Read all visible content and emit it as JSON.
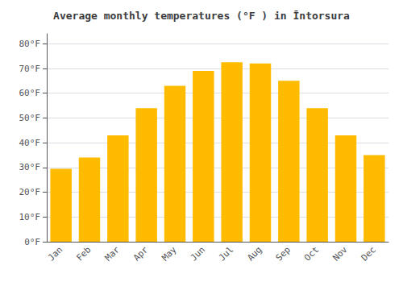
{
  "chart_data": {
    "type": "bar",
    "title": "Average monthly temperatures (°F ) in Īntorsura",
    "categories": [
      "Jan",
      "Feb",
      "Mar",
      "Apr",
      "May",
      "Jun",
      "Jul",
      "Aug",
      "Sep",
      "Oct",
      "Nov",
      "Dec"
    ],
    "values": [
      29.5,
      34,
      43,
      54,
      63,
      69,
      72.5,
      72,
      65,
      54,
      43,
      35
    ],
    "color": "#FFBB00",
    "ylim": [
      0,
      84
    ],
    "yticks": [
      {
        "value": 0,
        "label": "0°F"
      },
      {
        "value": 10,
        "label": "10°F"
      },
      {
        "value": 20,
        "label": "20°F"
      },
      {
        "value": 30,
        "label": "30°F"
      },
      {
        "value": 40,
        "label": "40°F"
      },
      {
        "value": 50,
        "label": "50°F"
      },
      {
        "value": 60,
        "label": "60°F"
      },
      {
        "value": 70,
        "label": "70°F"
      },
      {
        "value": 80,
        "label": "80°F"
      }
    ],
    "grid": true
  }
}
